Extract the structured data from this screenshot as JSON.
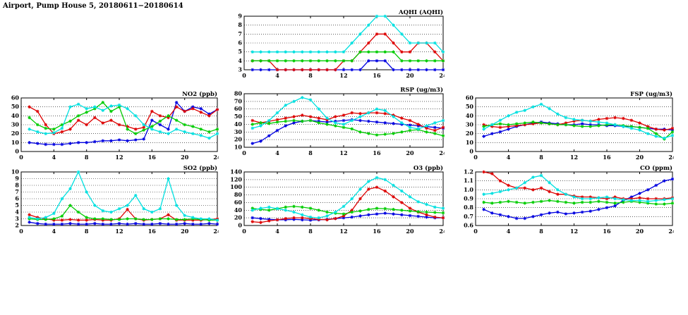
{
  "page_title": "Airport, Pump House 5, 20180611−20180614",
  "colors": {
    "blue": "#0000e0",
    "red": "#dd0000",
    "green": "#00cc00",
    "cyan": "#00e0e0"
  },
  "chart_data": [
    {
      "id": "aqhi",
      "type": "line",
      "title": "AQHI (AQHI)",
      "xlim": [
        0,
        24
      ],
      "xticks": [
        0,
        4,
        8,
        12,
        16,
        20,
        24
      ],
      "ylim": [
        3,
        9
      ],
      "ytick_step": 1,
      "ydecimals": 0,
      "grid": "horizontal-dotted",
      "x": [
        1,
        2,
        3,
        4,
        5,
        6,
        7,
        8,
        9,
        10,
        11,
        12,
        13,
        14,
        15,
        16,
        17,
        18,
        19,
        20,
        21,
        22,
        23,
        24
      ],
      "series": [
        {
          "name": "blue",
          "color": "#0000e0",
          "values": [
            3,
            3,
            3,
            3,
            3,
            3,
            3,
            3,
            3,
            3,
            3,
            3,
            3,
            3,
            4,
            4,
            4,
            3,
            3,
            3,
            3,
            3,
            3,
            3
          ]
        },
        {
          "name": "red",
          "color": "#dd0000",
          "values": [
            4,
            4,
            4,
            3,
            3,
            3,
            3,
            3,
            3,
            3,
            3,
            4,
            4,
            5,
            6,
            7,
            7,
            6,
            5,
            5,
            6,
            6,
            5,
            4
          ]
        },
        {
          "name": "green",
          "color": "#00cc00",
          "values": [
            4,
            4,
            4,
            4,
            4,
            4,
            4,
            4,
            4,
            4,
            4,
            4,
            4,
            5,
            5,
            5,
            5,
            5,
            4,
            4,
            4,
            4,
            4,
            4
          ]
        },
        {
          "name": "cyan",
          "color": "#00e0e0",
          "values": [
            5,
            5,
            5,
            5,
            5,
            5,
            5,
            5,
            5,
            5,
            5,
            5,
            6,
            7,
            8,
            9,
            9,
            8,
            7,
            6,
            6,
            6,
            6,
            5
          ]
        }
      ]
    },
    {
      "id": "no2",
      "type": "line",
      "title": "NO2 (ppb)",
      "xlim": [
        0,
        24
      ],
      "xticks": [
        0,
        4,
        8,
        12,
        16,
        20,
        24
      ],
      "ylim": [
        0,
        60
      ],
      "ytick_step": 10,
      "ydecimals": 0,
      "grid": "horizontal-dotted",
      "x": [
        1,
        2,
        3,
        4,
        5,
        6,
        7,
        8,
        9,
        10,
        11,
        12,
        13,
        14,
        15,
        16,
        17,
        18,
        19,
        20,
        21,
        22,
        23,
        24
      ],
      "series": [
        {
          "name": "blue",
          "color": "#0000e0",
          "values": [
            10,
            9,
            8,
            8,
            8,
            9,
            10,
            10,
            11,
            12,
            12,
            13,
            12,
            13,
            14,
            35,
            30,
            25,
            55,
            45,
            50,
            48,
            42,
            47
          ]
        },
        {
          "name": "red",
          "color": "#dd0000",
          "values": [
            50,
            45,
            30,
            20,
            22,
            25,
            35,
            30,
            38,
            32,
            35,
            30,
            28,
            25,
            27,
            45,
            40,
            38,
            50,
            45,
            48,
            44,
            40,
            47
          ]
        },
        {
          "name": "green",
          "color": "#00cc00",
          "values": [
            38,
            30,
            26,
            25,
            30,
            34,
            40,
            44,
            48,
            55,
            45,
            50,
            25,
            20,
            24,
            28,
            34,
            40,
            35,
            30,
            28,
            25,
            22,
            25
          ]
        },
        {
          "name": "cyan",
          "color": "#00e0e0",
          "values": [
            25,
            22,
            20,
            21,
            26,
            50,
            53,
            48,
            50,
            46,
            51,
            52,
            48,
            40,
            30,
            25,
            22,
            20,
            25,
            22,
            20,
            18,
            15,
            20
          ]
        }
      ]
    },
    {
      "id": "rsp",
      "type": "line",
      "title": "RSP (ug/m3)",
      "xlim": [
        0,
        24
      ],
      "xticks": [
        0,
        4,
        8,
        12,
        16,
        20,
        24
      ],
      "ylim": [
        10,
        80
      ],
      "ytick_step": 10,
      "ydecimals": 0,
      "grid": "horizontal-dotted",
      "x": [
        1,
        2,
        3,
        4,
        5,
        6,
        7,
        8,
        9,
        10,
        11,
        12,
        13,
        14,
        15,
        16,
        17,
        18,
        19,
        20,
        21,
        22,
        23,
        24
      ],
      "series": [
        {
          "name": "blue",
          "color": "#0000e0",
          "values": [
            15,
            18,
            25,
            32,
            38,
            42,
            44,
            45,
            44,
            43,
            44,
            45,
            46,
            45,
            44,
            43,
            42,
            41,
            40,
            39,
            38,
            37,
            36,
            35
          ]
        },
        {
          "name": "red",
          "color": "#dd0000",
          "values": [
            45,
            42,
            44,
            46,
            48,
            50,
            52,
            50,
            48,
            46,
            50,
            52,
            55,
            54,
            55,
            55,
            54,
            52,
            48,
            45,
            40,
            35,
            32,
            36
          ]
        },
        {
          "name": "green",
          "color": "#00cc00",
          "values": [
            40,
            42,
            41,
            43,
            44,
            45,
            44,
            45,
            42,
            40,
            38,
            36,
            34,
            30,
            28,
            26,
            27,
            28,
            30,
            32,
            33,
            30,
            28,
            25
          ]
        },
        {
          "name": "cyan",
          "color": "#00e0e0",
          "values": [
            35,
            38,
            45,
            55,
            65,
            70,
            75,
            72,
            60,
            48,
            42,
            40,
            45,
            50,
            55,
            60,
            58,
            50,
            42,
            36,
            34,
            38,
            42,
            45
          ]
        }
      ]
    },
    {
      "id": "fsp",
      "type": "line",
      "title": "FSP (ug/m3)",
      "xlim": [
        0,
        24
      ],
      "xticks": [
        0,
        4,
        8,
        12,
        16,
        20,
        24
      ],
      "ylim": [
        0,
        60
      ],
      "ytick_step": 10,
      "ydecimals": 0,
      "grid": "horizontal-dotted",
      "x": [
        1,
        2,
        3,
        4,
        5,
        6,
        7,
        8,
        9,
        10,
        11,
        12,
        13,
        14,
        15,
        16,
        17,
        18,
        19,
        20,
        21,
        22,
        23,
        24
      ],
      "series": [
        {
          "name": "blue",
          "color": "#0000e0",
          "values": [
            17,
            20,
            22,
            25,
            28,
            30,
            32,
            33,
            32,
            31,
            30,
            30,
            31,
            30,
            30,
            29,
            29,
            28,
            28,
            27,
            26,
            25,
            25,
            24
          ]
        },
        {
          "name": "red",
          "color": "#dd0000",
          "values": [
            30,
            28,
            27,
            28,
            29,
            30,
            31,
            32,
            31,
            30,
            32,
            34,
            35,
            34,
            36,
            37,
            38,
            37,
            35,
            32,
            28,
            25,
            24,
            26
          ]
        },
        {
          "name": "green",
          "color": "#00cc00",
          "values": [
            28,
            30,
            31,
            30,
            31,
            32,
            33,
            32,
            31,
            30,
            30,
            29,
            28,
            28,
            29,
            30,
            30,
            29,
            28,
            27,
            26,
            20,
            14,
            22
          ]
        },
        {
          "name": "cyan",
          "color": "#00e0e0",
          "values": [
            25,
            30,
            35,
            40,
            44,
            46,
            50,
            53,
            48,
            42,
            38,
            36,
            35,
            34,
            33,
            32,
            30,
            28,
            26,
            24,
            20,
            17,
            15,
            18
          ]
        }
      ]
    },
    {
      "id": "so2",
      "type": "line",
      "title": "SO2 (ppb)",
      "xlim": [
        0,
        24
      ],
      "xticks": [
        0,
        4,
        8,
        12,
        16,
        20,
        24
      ],
      "ylim": [
        2,
        10
      ],
      "ytick_step": 1,
      "ydecimals": 0,
      "grid": "horizontal-dotted",
      "x": [
        1,
        2,
        3,
        4,
        5,
        6,
        7,
        8,
        9,
        10,
        11,
        12,
        13,
        14,
        15,
        16,
        17,
        18,
        19,
        20,
        21,
        22,
        23,
        24
      ],
      "series": [
        {
          "name": "blue",
          "color": "#0000e0",
          "values": [
            2.5,
            2.3,
            2.2,
            2.2,
            2.2,
            2.3,
            2.2,
            2.2,
            2.3,
            2.2,
            2.2,
            2.3,
            2.2,
            2.3,
            2.2,
            2.2,
            2.3,
            2.2,
            2.2,
            2.3,
            2.2,
            2.2,
            2.3,
            2.2
          ]
        },
        {
          "name": "red",
          "color": "#dd0000",
          "values": [
            3.6,
            3.2,
            3.0,
            2.8,
            2.8,
            2.9,
            2.8,
            2.8,
            2.9,
            2.8,
            2.8,
            3.0,
            4.4,
            3.0,
            2.8,
            2.9,
            3.0,
            3.6,
            2.8,
            2.8,
            2.8,
            2.8,
            2.9,
            3.0
          ]
        },
        {
          "name": "green",
          "color": "#00cc00",
          "values": [
            3.0,
            2.9,
            2.9,
            3.0,
            3.4,
            5.0,
            4.0,
            3.2,
            3.0,
            3.0,
            2.9,
            2.9,
            3.0,
            3.0,
            2.9,
            2.9,
            3.0,
            3.0,
            2.9,
            2.9,
            3.0,
            2.9,
            2.8,
            2.8
          ]
        },
        {
          "name": "cyan",
          "color": "#00e0e0",
          "values": [
            3.2,
            3.0,
            3.2,
            3.8,
            6.0,
            7.5,
            10.0,
            7.0,
            5.0,
            4.2,
            4.0,
            4.5,
            5.0,
            6.5,
            4.5,
            4.0,
            4.5,
            9.0,
            5.0,
            3.5,
            3.2,
            3.0,
            3.0,
            2.8
          ]
        }
      ]
    },
    {
      "id": "o3",
      "type": "line",
      "title": "O3 (ppb)",
      "xlim": [
        0,
        24
      ],
      "xticks": [
        0,
        4,
        8,
        12,
        16,
        20,
        24
      ],
      "ylim": [
        0,
        140
      ],
      "ytick_step": 20,
      "ydecimals": 0,
      "grid": "horizontal-dotted",
      "x": [
        1,
        2,
        3,
        4,
        5,
        6,
        7,
        8,
        9,
        10,
        11,
        12,
        13,
        14,
        15,
        16,
        17,
        18,
        19,
        20,
        21,
        22,
        23,
        24
      ],
      "series": [
        {
          "name": "blue",
          "color": "#0000e0",
          "values": [
            20,
            18,
            16,
            15,
            15,
            16,
            15,
            14,
            15,
            16,
            18,
            20,
            22,
            25,
            28,
            30,
            32,
            30,
            28,
            26,
            24,
            22,
            20,
            20
          ]
        },
        {
          "name": "red",
          "color": "#dd0000",
          "values": [
            10,
            8,
            12,
            15,
            18,
            20,
            20,
            18,
            16,
            15,
            18,
            25,
            40,
            70,
            95,
            100,
            90,
            75,
            60,
            45,
            35,
            28,
            22,
            20
          ]
        },
        {
          "name": "green",
          "color": "#00cc00",
          "values": [
            45,
            42,
            40,
            44,
            48,
            50,
            48,
            45,
            40,
            35,
            32,
            30,
            35,
            38,
            42,
            45,
            44,
            42,
            40,
            38,
            36,
            35,
            34,
            33
          ]
        },
        {
          "name": "cyan",
          "color": "#00e0e0",
          "values": [
            40,
            45,
            48,
            44,
            40,
            35,
            28,
            22,
            20,
            25,
            35,
            50,
            70,
            95,
            115,
            125,
            120,
            105,
            90,
            75,
            62,
            55,
            48,
            45
          ]
        }
      ]
    },
    {
      "id": "co",
      "type": "line",
      "title": "CO (ppm)",
      "xlim": [
        0,
        24
      ],
      "xticks": [
        0,
        4,
        8,
        12,
        16,
        20,
        24
      ],
      "ylim": [
        0.6,
        1.2
      ],
      "ytick_step": 0.1,
      "ydecimals": 1,
      "grid": "horizontal-dotted",
      "x": [
        1,
        2,
        3,
        4,
        5,
        6,
        7,
        8,
        9,
        10,
        11,
        12,
        13,
        14,
        15,
        16,
        17,
        18,
        19,
        20,
        21,
        22,
        23,
        24
      ],
      "series": [
        {
          "name": "blue",
          "color": "#0000e0",
          "values": [
            0.78,
            0.74,
            0.72,
            0.7,
            0.68,
            0.68,
            0.7,
            0.72,
            0.74,
            0.75,
            0.73,
            0.74,
            0.75,
            0.76,
            0.78,
            0.8,
            0.82,
            0.88,
            0.92,
            0.96,
            1.0,
            1.05,
            1.1,
            1.12
          ]
        },
        {
          "name": "red",
          "color": "#dd0000",
          "values": [
            1.2,
            1.18,
            1.1,
            1.05,
            1.02,
            1.02,
            1.0,
            1.02,
            0.98,
            0.95,
            0.95,
            0.93,
            0.92,
            0.92,
            0.91,
            0.9,
            0.92,
            0.9,
            0.9,
            0.91,
            0.9,
            0.9,
            0.9,
            0.91
          ]
        },
        {
          "name": "green",
          "color": "#00cc00",
          "values": [
            0.86,
            0.85,
            0.86,
            0.87,
            0.86,
            0.85,
            0.86,
            0.87,
            0.88,
            0.87,
            0.86,
            0.85,
            0.86,
            0.86,
            0.87,
            0.86,
            0.85,
            0.86,
            0.87,
            0.86,
            0.85,
            0.84,
            0.84,
            0.85
          ]
        },
        {
          "name": "cyan",
          "color": "#00e0e0",
          "values": [
            0.95,
            0.96,
            0.98,
            1.0,
            1.02,
            1.08,
            1.14,
            1.16,
            1.08,
            1.0,
            0.95,
            0.92,
            0.9,
            0.9,
            0.91,
            0.92,
            0.9,
            0.89,
            0.88,
            0.88,
            0.87,
            0.88,
            0.89,
            0.9
          ]
        }
      ]
    }
  ]
}
